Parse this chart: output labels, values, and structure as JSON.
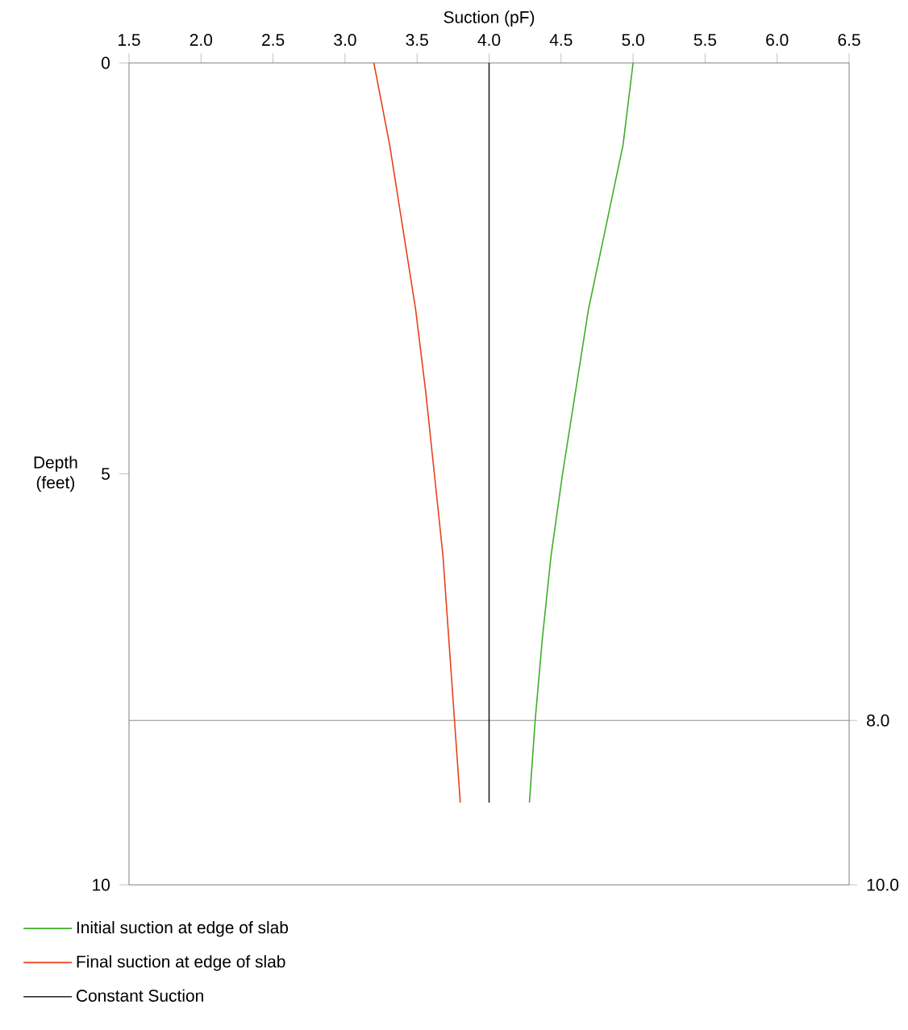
{
  "chart_data": {
    "type": "line",
    "xlabel": "Suction (pF)",
    "ylabel": "Depth (feet)",
    "xlim": [
      1.5,
      6.5
    ],
    "xticks": [
      1.5,
      {
        "value": 2,
        "label": "2.0"
      },
      2.5,
      {
        "value": 3,
        "label": "3.0"
      },
      3.5,
      {
        "value": 4,
        "label": "4.0"
      },
      4.5,
      {
        "value": 5,
        "label": "5.0"
      },
      5.5,
      {
        "value": 6,
        "label": "6.0"
      },
      6.5
    ],
    "ylim": [
      10,
      0
    ],
    "yticks": [
      0,
      5,
      10
    ],
    "y2lim": [
      10,
      0
    ],
    "y2ticks": [
      {
        "value": 8,
        "label": "8.0"
      },
      {
        "value": 10,
        "label": "10.0"
      }
    ],
    "legend": "bottom left",
    "series": [
      {
        "name": "Initial suction at edge of slab",
        "color": "#3fae2a",
        "x": [
          5.0,
          4.93,
          4.81,
          4.69,
          4.6,
          4.51,
          4.43,
          4.37,
          4.32,
          4.28
        ],
        "values": [
          0,
          1,
          2,
          3,
          4,
          5,
          6,
          7,
          8,
          9
        ]
      },
      {
        "name": "Final suction at edge of slab",
        "color": "#e8411c",
        "x": [
          3.2,
          3.31,
          3.4,
          3.49,
          3.56,
          3.62,
          3.68,
          3.72,
          3.76,
          3.8
        ],
        "values": [
          0,
          1,
          2,
          3,
          4,
          5,
          6,
          7,
          8,
          9
        ]
      },
      {
        "name": "Constant Suction",
        "color": "#222222",
        "x": [
          4.0,
          4.0
        ],
        "values": [
          0,
          9
        ]
      }
    ],
    "ref_lines": [
      {
        "axis": "y",
        "value": 8,
        "color": "#808080"
      }
    ]
  }
}
